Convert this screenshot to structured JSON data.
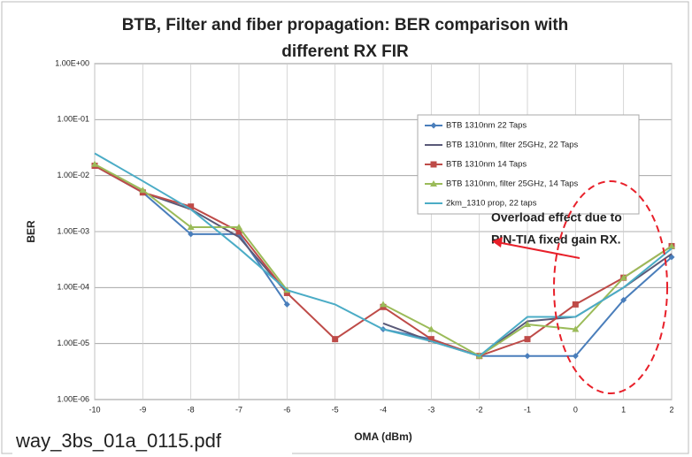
{
  "chart_data": {
    "type": "line",
    "title": "BTB, Filter and fiber propagation: BER comparison with different RX FIR",
    "xlabel": "OMA (dBm)",
    "ylabel": "BER",
    "x": [
      -10,
      -9,
      -8,
      -7,
      -6,
      -5,
      -4,
      -3,
      -2,
      -1,
      0,
      1,
      2
    ],
    "series": [
      {
        "name": "BTB 1310nm 22 Taps",
        "color": "#4a7ebb",
        "marker": "diamond",
        "values": [
          0.015,
          0.005,
          0.0009,
          0.0009,
          5e-05,
          null,
          1.8e-05,
          1.2e-05,
          6e-06,
          6e-06,
          6e-06,
          6e-05,
          0.00035
        ]
      },
      {
        "name": "BTB 1310nm, filter 25GHz, 22 Taps",
        "color": "#5a5a78",
        "marker": "none",
        "values": [
          0.015,
          0.005,
          0.0025,
          0.0008,
          8e-05,
          null,
          2.3e-05,
          1.1e-05,
          6e-06,
          2.5e-05,
          3e-05,
          0.0001,
          0.0004
        ]
      },
      {
        "name": "BTB 1310nm 14 Taps",
        "color": "#be4b48",
        "marker": "square",
        "values": [
          0.015,
          0.005,
          0.0028,
          0.001,
          8e-05,
          1.2e-05,
          4.5e-05,
          1.2e-05,
          6e-06,
          1.2e-05,
          5e-05,
          0.00015,
          0.00055
        ]
      },
      {
        "name": "BTB 1310nm, filter 25GHz, 14 Taps",
        "color": "#9bbb59",
        "marker": "triangle",
        "values": [
          0.016,
          0.0055,
          0.0012,
          0.0012,
          9e-05,
          null,
          5e-05,
          1.8e-05,
          6e-06,
          2.2e-05,
          1.8e-05,
          0.00015,
          0.00055
        ]
      },
      {
        "name": "2km_1310 prop, 22 taps",
        "color": "#4bacc6",
        "marker": "none",
        "values": [
          0.025,
          0.008,
          0.0025,
          0.0005,
          9e-05,
          5e-05,
          1.8e-05,
          1.1e-05,
          6e-06,
          3e-05,
          3e-05,
          0.0001,
          0.0005
        ]
      }
    ],
    "xlim": [
      -10,
      2
    ],
    "xticks": [
      -10,
      -9,
      -8,
      -7,
      -6,
      -5,
      -4,
      -3,
      -2,
      -1,
      0,
      1,
      2
    ],
    "ylim": [
      1e-06,
      1
    ],
    "yscale": "log",
    "yticks": [
      {
        "value": 1,
        "label": "1.00E+00"
      },
      {
        "value": 0.1,
        "label": "1.00E-01"
      },
      {
        "value": 0.01,
        "label": "1.00E-02"
      },
      {
        "value": 0.001,
        "label": "1.00E-03"
      },
      {
        "value": 0.0001,
        "label": "1.00E-04"
      },
      {
        "value": 1e-05,
        "label": "1.00E-05"
      },
      {
        "value": 1e-06,
        "label": "1.00E-06"
      }
    ],
    "grid": true,
    "annotation": [
      "Overload effect due to",
      "PIN-TIA fixed gain RX."
    ],
    "footer": "way_3bs_01a_0115.pdf"
  }
}
